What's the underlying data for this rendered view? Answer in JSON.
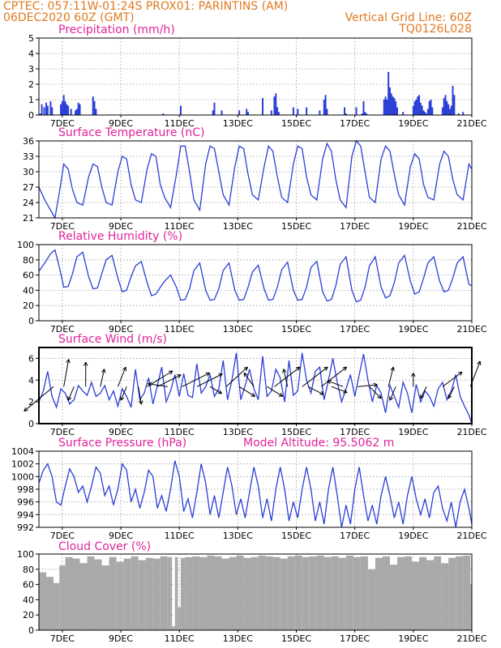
{
  "header": {
    "line1_left": "CPTEC:   057:11W-01:24S   PROX01: PARINTINS (AM)",
    "line2_left": "06DEC2020 60Z (GMT)",
    "line2_right": "Vertical Grid Line: 60Z",
    "line3_right": "TQ0126L028"
  },
  "colors": {
    "header": "#e07a1f",
    "title": "#e0229a",
    "series": "#2a3fd6",
    "cloud": "#a9a9a9"
  },
  "x_axis": {
    "tick_labels": [
      "7DEC",
      "9DEC",
      "11DEC",
      "13DEC",
      "15DEC",
      "17DEC",
      "19DEC",
      "21DEC"
    ],
    "tick_days": [
      7,
      9,
      11,
      13,
      15,
      17,
      19,
      21
    ],
    "start_day": 6.2,
    "end_day": 21.0
  },
  "chart_data": [
    {
      "type": "bar",
      "title": "Precipitation (mm/h)",
      "ylim": [
        0,
        5
      ],
      "yticks": [
        0,
        1,
        2,
        3,
        4,
        5
      ],
      "x": [
        6.25,
        6.3,
        6.38,
        6.45,
        6.5,
        6.6,
        6.65,
        6.95,
        7.0,
        7.05,
        7.1,
        7.15,
        7.2,
        7.3,
        7.45,
        7.5,
        7.55,
        7.6,
        8.05,
        8.1,
        8.15,
        10.45,
        11.05,
        12.15,
        12.2,
        12.45,
        13.05,
        13.3,
        13.35,
        13.85,
        14.15,
        14.25,
        14.3,
        14.35,
        14.4,
        14.9,
        15.05,
        15.35,
        15.8,
        15.95,
        16.0,
        16.05,
        16.65,
        16.7,
        17.05,
        17.25,
        17.3,
        17.35,
        17.4,
        18.0,
        18.05,
        18.1,
        18.15,
        18.2,
        18.25,
        18.3,
        18.35,
        18.4,
        18.45,
        18.65,
        19.0,
        19.05,
        19.1,
        19.15,
        19.2,
        19.25,
        19.3,
        19.35,
        19.4,
        19.45,
        19.5,
        19.55,
        19.6,
        19.65,
        20.0,
        20.05,
        20.1,
        20.15,
        20.2,
        20.25,
        20.3,
        20.35,
        20.4,
        20.55,
        20.7
      ],
      "values": [
        0.1,
        0.7,
        0.5,
        0.8,
        0.6,
        0.9,
        0.5,
        0.7,
        0.9,
        1.3,
        0.9,
        0.7,
        0.6,
        0.4,
        0.3,
        0.4,
        0.8,
        0.7,
        1.2,
        0.9,
        0.4,
        0.1,
        0.6,
        0.3,
        0.8,
        0.3,
        0.3,
        0.4,
        0.2,
        1.1,
        0.3,
        1.2,
        1.4,
        0.5,
        0.2,
        0.5,
        0.4,
        0.5,
        0.3,
        1.0,
        1.3,
        0.4,
        0.5,
        0.1,
        0.5,
        0.1,
        0.9,
        0.2,
        0.1,
        1.0,
        1.2,
        1.0,
        2.8,
        1.8,
        1.4,
        1.2,
        1.1,
        0.9,
        0.5,
        0.2,
        0.6,
        0.9,
        1.0,
        1.2,
        1.3,
        0.8,
        0.6,
        0.3,
        0.2,
        0.1,
        0.4,
        0.9,
        1.0,
        0.5,
        0.5,
        1.1,
        1.3,
        0.9,
        0.7,
        0.4,
        0.6,
        1.9,
        1.3,
        0.1,
        0.2
      ]
    },
    {
      "type": "line",
      "title": "Surface Temperature (nC)",
      "ylim": [
        21,
        36
      ],
      "yticks": [
        21,
        24,
        27,
        30,
        33,
        36
      ],
      "x": [
        6.2,
        6.4,
        6.6,
        6.75,
        6.9,
        7.05,
        7.2,
        7.35,
        7.5,
        7.7,
        7.9,
        8.05,
        8.2,
        8.35,
        8.5,
        8.7,
        8.9,
        9.05,
        9.2,
        9.35,
        9.5,
        9.7,
        9.9,
        10.05,
        10.2,
        10.35,
        10.5,
        10.7,
        10.9,
        11.05,
        11.2,
        11.35,
        11.5,
        11.7,
        11.9,
        12.05,
        12.2,
        12.35,
        12.5,
        12.7,
        12.9,
        13.05,
        13.2,
        13.35,
        13.5,
        13.7,
        13.9,
        14.05,
        14.2,
        14.35,
        14.5,
        14.7,
        14.9,
        15.05,
        15.2,
        15.35,
        15.5,
        15.7,
        15.9,
        16.05,
        16.2,
        16.35,
        16.5,
        16.7,
        16.9,
        17.05,
        17.2,
        17.35,
        17.5,
        17.7,
        17.9,
        18.05,
        18.2,
        18.35,
        18.5,
        18.7,
        18.9,
        19.05,
        19.2,
        19.35,
        19.5,
        19.7,
        19.9,
        20.05,
        20.2,
        20.35,
        20.5,
        20.7,
        20.9,
        21.0
      ],
      "values": [
        27.0,
        24.5,
        22.5,
        21.0,
        26.0,
        31.5,
        30.5,
        26.5,
        24.0,
        23.5,
        29.0,
        31.5,
        31.0,
        27.0,
        24.0,
        23.5,
        30.0,
        33.0,
        32.5,
        27.5,
        24.5,
        24.0,
        30.5,
        33.5,
        33.0,
        27.5,
        25.0,
        23.0,
        29.5,
        35.0,
        35.0,
        30.0,
        24.5,
        22.5,
        31.5,
        35.0,
        34.5,
        30.0,
        25.5,
        23.5,
        31.0,
        35.0,
        34.5,
        29.5,
        25.5,
        24.5,
        31.0,
        35.0,
        34.0,
        29.0,
        25.0,
        24.0,
        31.5,
        35.0,
        34.5,
        29.0,
        25.5,
        24.5,
        32.5,
        35.5,
        34.0,
        28.5,
        24.5,
        23.0,
        33.0,
        36.0,
        35.0,
        30.0,
        25.0,
        24.0,
        32.5,
        35.0,
        34.0,
        29.5,
        25.5,
        23.5,
        31.0,
        33.5,
        32.5,
        27.5,
        25.0,
        24.5,
        31.5,
        34.0,
        33.0,
        28.5,
        25.5,
        24.5,
        31.5,
        30.5
      ]
    },
    {
      "type": "line",
      "title": "Relative Humidity (%)",
      "ylim": [
        0,
        100
      ],
      "yticks": [
        0,
        20,
        40,
        60,
        80,
        100
      ],
      "x": [
        6.2,
        6.4,
        6.6,
        6.75,
        6.9,
        7.05,
        7.2,
        7.35,
        7.5,
        7.7,
        7.9,
        8.05,
        8.2,
        8.35,
        8.5,
        8.7,
        8.9,
        9.05,
        9.2,
        9.35,
        9.5,
        9.7,
        9.9,
        10.05,
        10.2,
        10.35,
        10.5,
        10.7,
        10.9,
        11.05,
        11.2,
        11.35,
        11.5,
        11.7,
        11.9,
        12.05,
        12.2,
        12.35,
        12.5,
        12.7,
        12.9,
        13.05,
        13.2,
        13.35,
        13.5,
        13.7,
        13.9,
        14.05,
        14.2,
        14.35,
        14.5,
        14.7,
        14.9,
        15.05,
        15.2,
        15.35,
        15.5,
        15.7,
        15.9,
        16.05,
        16.2,
        16.35,
        16.5,
        16.7,
        16.9,
        17.05,
        17.2,
        17.35,
        17.5,
        17.7,
        17.9,
        18.05,
        18.2,
        18.35,
        18.5,
        18.7,
        18.9,
        19.05,
        19.2,
        19.35,
        19.5,
        19.7,
        19.9,
        20.05,
        20.2,
        20.35,
        20.5,
        20.7,
        20.9,
        21.0
      ],
      "values": [
        65.0,
        76.0,
        88.0,
        93.0,
        70.0,
        44.0,
        45.0,
        62.0,
        84.0,
        90.0,
        58.0,
        42.0,
        43.0,
        62.0,
        80.0,
        86.0,
        56.0,
        38.0,
        40.0,
        58.0,
        72.0,
        78.0,
        50.0,
        33.0,
        35.0,
        44.0,
        52.0,
        60.0,
        44.0,
        27.0,
        28.0,
        42.0,
        66.0,
        76.0,
        40.0,
        27.0,
        28.0,
        42.0,
        66.0,
        76.0,
        40.0,
        27.0,
        28.0,
        44.0,
        64.0,
        73.0,
        42.0,
        27.0,
        28.0,
        44.0,
        67.0,
        77.0,
        40.0,
        27.0,
        28.0,
        44.0,
        70.0,
        78.0,
        38.0,
        26.0,
        28.0,
        46.0,
        74.0,
        84.0,
        40.0,
        25.0,
        27.0,
        44.0,
        72.0,
        84.0,
        44.0,
        30.0,
        33.0,
        50.0,
        76.0,
        86.0,
        52.0,
        35.0,
        38.0,
        56.0,
        76.0,
        84.0,
        52.0,
        38.0,
        40.0,
        56.0,
        76.0,
        84.0,
        48.0,
        46.0
      ]
    },
    {
      "type": "line",
      "title": "Surface Wind (m/s)",
      "ylim": [
        0,
        7
      ],
      "yticks": [
        0,
        2,
        4,
        6
      ],
      "x": [
        6.2,
        6.35,
        6.5,
        6.65,
        6.8,
        6.95,
        7.1,
        7.25,
        7.4,
        7.55,
        7.7,
        7.85,
        8.0,
        8.15,
        8.3,
        8.45,
        8.6,
        8.75,
        8.9,
        9.05,
        9.2,
        9.35,
        9.5,
        9.65,
        9.8,
        9.95,
        10.1,
        10.25,
        10.4,
        10.55,
        10.7,
        10.85,
        11.0,
        11.15,
        11.3,
        11.45,
        11.6,
        11.75,
        11.9,
        12.05,
        12.2,
        12.35,
        12.5,
        12.65,
        12.8,
        12.95,
        13.1,
        13.25,
        13.4,
        13.55,
        13.7,
        13.85,
        14.0,
        14.15,
        14.3,
        14.45,
        14.6,
        14.75,
        14.9,
        15.05,
        15.2,
        15.35,
        15.5,
        15.65,
        15.8,
        15.95,
        16.1,
        16.25,
        16.4,
        16.55,
        16.7,
        16.85,
        17.0,
        17.15,
        17.3,
        17.45,
        17.6,
        17.75,
        17.9,
        18.05,
        18.2,
        18.35,
        18.5,
        18.65,
        18.8,
        18.95,
        19.1,
        19.25,
        19.4,
        19.55,
        19.7,
        19.85,
        20.0,
        20.15,
        20.3,
        20.45,
        20.6,
        20.75,
        20.9,
        21.0
      ],
      "values": [
        2.0,
        3.0,
        4.8,
        2.5,
        1.5,
        3.2,
        2.8,
        1.8,
        2.2,
        3.5,
        3.0,
        2.6,
        3.8,
        2.5,
        2.8,
        3.5,
        2.2,
        3.0,
        1.6,
        3.2,
        2.5,
        1.5,
        5.0,
        2.2,
        2.8,
        4.2,
        1.8,
        3.5,
        5.2,
        2.0,
        3.0,
        4.5,
        2.5,
        4.6,
        2.6,
        2.4,
        5.5,
        2.8,
        3.4,
        4.5,
        2.5,
        3.2,
        5.8,
        2.2,
        4.0,
        6.5,
        2.2,
        3.5,
        5.0,
        3.2,
        2.2,
        6.2,
        2.5,
        3.0,
        5.0,
        4.2,
        2.0,
        5.8,
        2.6,
        3.0,
        6.5,
        4.0,
        2.8,
        4.8,
        5.2,
        2.2,
        4.0,
        6.0,
        3.8,
        2.0,
        3.2,
        4.5,
        2.5,
        4.5,
        6.4,
        4.0,
        2.0,
        3.5,
        2.8,
        1.0,
        3.5,
        2.5,
        1.5,
        3.8,
        2.8,
        1.0,
        3.6,
        2.0,
        3.0,
        2.5,
        1.6,
        3.2,
        3.8,
        2.2,
        3.0,
        4.5,
        2.5,
        1.6,
        0.8,
        0.0
      ],
      "vectors": [
        {
          "day": 6.7,
          "u": -3.0,
          "v": -2.5
        },
        {
          "day": 7.05,
          "u": 0.5,
          "v": 2.8
        },
        {
          "day": 7.4,
          "u": -0.6,
          "v": -1.4
        },
        {
          "day": 7.8,
          "u": 0.0,
          "v": 2.5
        },
        {
          "day": 8.3,
          "u": 0.4,
          "v": 1.8
        },
        {
          "day": 8.9,
          "u": 0.8,
          "v": 2.0
        },
        {
          "day": 9.2,
          "u": -0.6,
          "v": -1.4
        },
        {
          "day": 9.6,
          "u": 0.3,
          "v": -1.8
        },
        {
          "day": 9.9,
          "u": 2.6,
          "v": 1.6
        },
        {
          "day": 10.25,
          "u": 2.4,
          "v": 1.2
        },
        {
          "day": 10.6,
          "u": -2.0,
          "v": 0.3
        },
        {
          "day": 11.1,
          "u": 2.8,
          "v": 1.4
        },
        {
          "day": 11.6,
          "u": 2.6,
          "v": 1.3
        },
        {
          "day": 12.05,
          "u": 1.2,
          "v": -0.7
        },
        {
          "day": 12.6,
          "u": 2.2,
          "v": 2.0
        },
        {
          "day": 13.05,
          "u": 1.6,
          "v": -1.0
        },
        {
          "day": 13.55,
          "u": -1.0,
          "v": 1.4
        },
        {
          "day": 14.0,
          "u": 1.6,
          "v": -1.0
        },
        {
          "day": 14.25,
          "u": 2.6,
          "v": 2.0
        },
        {
          "day": 14.7,
          "u": -0.4,
          "v": 1.8
        },
        {
          "day": 15.2,
          "u": 2.6,
          "v": 2.0
        },
        {
          "day": 15.4,
          "u": 1.6,
          "v": -0.8
        },
        {
          "day": 15.85,
          "u": 2.6,
          "v": 2.0
        },
        {
          "day": 16.2,
          "u": 1.6,
          "v": -0.6
        },
        {
          "day": 16.6,
          "u": -1.6,
          "v": 0.6
        },
        {
          "day": 17.1,
          "u": 2.0,
          "v": 0.2
        },
        {
          "day": 17.5,
          "u": 1.2,
          "v": -1.2
        },
        {
          "day": 18.15,
          "u": 0.5,
          "v": 2.0
        },
        {
          "day": 18.4,
          "u": -0.6,
          "v": -1.4
        },
        {
          "day": 19.0,
          "u": 0.0,
          "v": 1.4
        },
        {
          "day": 19.45,
          "u": -0.6,
          "v": -1.2
        },
        {
          "day": 20.0,
          "u": 2.0,
          "v": 1.5
        },
        {
          "day": 20.4,
          "u": -0.6,
          "v": -1.2
        },
        {
          "day": 20.95,
          "u": 1.0,
          "v": 2.6
        }
      ]
    },
    {
      "type": "line",
      "title": "Surface Pressure (hPa)",
      "annotation": "Model Altitude: 95.5062 m",
      "ylim": [
        992,
        1004
      ],
      "yticks": [
        992,
        994,
        996,
        998,
        1000,
        1002,
        1004
      ],
      "x": [
        6.2,
        6.35,
        6.5,
        6.65,
        6.8,
        6.95,
        7.1,
        7.25,
        7.4,
        7.55,
        7.7,
        7.85,
        8.0,
        8.15,
        8.3,
        8.45,
        8.6,
        8.75,
        8.9,
        9.05,
        9.2,
        9.35,
        9.5,
        9.65,
        9.8,
        9.95,
        10.1,
        10.25,
        10.4,
        10.55,
        10.7,
        10.85,
        11.0,
        11.15,
        11.3,
        11.45,
        11.6,
        11.75,
        11.9,
        12.05,
        12.2,
        12.35,
        12.5,
        12.65,
        12.8,
        12.95,
        13.1,
        13.25,
        13.4,
        13.55,
        13.7,
        13.85,
        14.0,
        14.15,
        14.3,
        14.45,
        14.6,
        14.75,
        14.9,
        15.05,
        15.2,
        15.35,
        15.5,
        15.65,
        15.8,
        15.95,
        16.1,
        16.25,
        16.4,
        16.55,
        16.7,
        16.85,
        17.0,
        17.15,
        17.3,
        17.45,
        17.6,
        17.75,
        17.9,
        18.05,
        18.2,
        18.35,
        18.5,
        18.65,
        18.8,
        18.95,
        19.1,
        19.25,
        19.4,
        19.55,
        19.7,
        19.85,
        20.0,
        20.15,
        20.3,
        20.45,
        20.6,
        20.75,
        20.9,
        21.0
      ],
      "values": [
        999.0,
        1001.0,
        1002.0,
        1000.0,
        996.0,
        995.5,
        998.5,
        1001.2,
        1000.0,
        997.5,
        998.5,
        996.0,
        998.5,
        1001.5,
        1000.5,
        997.0,
        998.5,
        995.5,
        998.0,
        1002.0,
        1001.0,
        996.0,
        998.0,
        995.0,
        997.5,
        1001.0,
        1000.0,
        995.0,
        997.0,
        994.5,
        998.0,
        1002.5,
        1000.0,
        994.5,
        996.5,
        993.5,
        997.5,
        1002.0,
        999.0,
        994.0,
        997.0,
        993.5,
        997.5,
        1001.5,
        998.5,
        994.0,
        996.5,
        993.5,
        997.5,
        1001.5,
        998.5,
        993.5,
        996.5,
        993.0,
        998.0,
        1001.5,
        998.0,
        993.0,
        996.0,
        993.5,
        998.0,
        1001.5,
        998.0,
        993.0,
        996.0,
        992.5,
        998.0,
        1001.5,
        997.0,
        992.0,
        995.5,
        992.5,
        998.0,
        1001.5,
        997.0,
        993.0,
        995.5,
        992.5,
        997.0,
        1000.0,
        997.0,
        993.5,
        996.0,
        992.5,
        997.0,
        1000.0,
        996.5,
        994.0,
        996.5,
        993.5,
        997.5,
        998.5,
        995.0,
        993.0,
        996.0,
        992.0,
        996.0,
        998.0,
        995.0,
        992.5
      ]
    },
    {
      "type": "area",
      "title": "Cloud Cover (%)",
      "ylim": [
        0,
        100
      ],
      "yticks": [
        0,
        20,
        40,
        60,
        80,
        100
      ],
      "x": [
        6.2,
        6.45,
        6.7,
        6.9,
        7.1,
        7.35,
        7.6,
        7.85,
        8.1,
        8.35,
        8.6,
        8.85,
        9.1,
        9.35,
        9.6,
        9.85,
        10.1,
        10.35,
        10.6,
        10.75,
        10.85,
        10.95,
        11.05,
        11.2,
        11.45,
        11.7,
        11.95,
        12.2,
        12.45,
        12.7,
        12.95,
        13.2,
        13.45,
        13.7,
        13.95,
        14.2,
        14.45,
        14.7,
        14.95,
        15.2,
        15.45,
        15.7,
        15.95,
        16.2,
        16.45,
        16.7,
        16.95,
        17.2,
        17.45,
        17.7,
        17.95,
        18.2,
        18.45,
        18.7,
        18.95,
        19.2,
        19.45,
        19.7,
        19.95,
        20.2,
        20.45,
        20.7,
        20.95
      ],
      "values": [
        76,
        70,
        62,
        85,
        96,
        94,
        88,
        97,
        93,
        85,
        96,
        90,
        94,
        97,
        92,
        95,
        94,
        97,
        96,
        5,
        96,
        30,
        95,
        96,
        97,
        96,
        98,
        97,
        94,
        96,
        98,
        95,
        96,
        98,
        97,
        96,
        94,
        97,
        98,
        96,
        97,
        98,
        96,
        97,
        95,
        98,
        96,
        97,
        80,
        95,
        97,
        86,
        96,
        97,
        90,
        96,
        92,
        97,
        88,
        95,
        97,
        98,
        60
      ]
    }
  ]
}
